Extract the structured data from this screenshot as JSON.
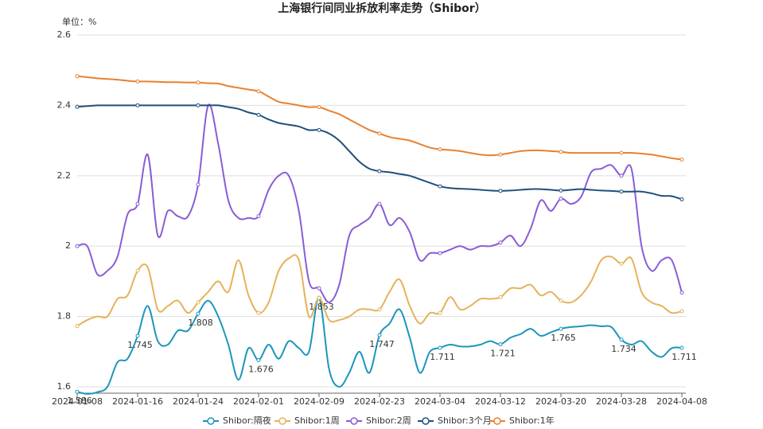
{
  "chart_data": {
    "type": "line",
    "title": "上海银行间同业拆放利率走势（Shibor）",
    "y_label": "单位：%",
    "categories": [
      "2024-01-08",
      null,
      null,
      null,
      null,
      null,
      "2024-01-16",
      null,
      null,
      null,
      null,
      null,
      "2024-01-24",
      null,
      null,
      null,
      null,
      null,
      "2024-02-01",
      null,
      null,
      null,
      null,
      null,
      "2024-02-09",
      null,
      null,
      null,
      null,
      null,
      "2024-02-23",
      null,
      null,
      null,
      null,
      null,
      "2024-03-04",
      null,
      null,
      null,
      null,
      null,
      "2024-03-12",
      null,
      null,
      null,
      null,
      null,
      "2024-03-20",
      null,
      null,
      null,
      null,
      null,
      "2024-03-28",
      null,
      null,
      null,
      null,
      null,
      "2024-04-08"
    ],
    "ylim": [
      1.582,
      2.6
    ],
    "yticks": [
      1.6,
      1.8,
      2,
      2.2,
      2.4,
      2.6
    ],
    "grid": true,
    "smooth": true,
    "legend": "bottom",
    "series": [
      {
        "name": "Shibor:隔夜",
        "color": "#1b96bd",
        "values": [
          1.586,
          1.58,
          1.585,
          1.6,
          1.67,
          1.68,
          1.745,
          1.83,
          1.73,
          1.72,
          1.76,
          1.76,
          1.808,
          1.845,
          1.8,
          1.72,
          1.62,
          1.71,
          1.676,
          1.72,
          1.68,
          1.73,
          1.71,
          1.7,
          1.853,
          1.65,
          1.6,
          1.64,
          1.7,
          1.64,
          1.747,
          1.78,
          1.82,
          1.74,
          1.64,
          1.7,
          1.711,
          1.72,
          1.715,
          1.715,
          1.72,
          1.73,
          1.721,
          1.74,
          1.75,
          1.765,
          1.745,
          1.755,
          1.765,
          1.77,
          1.772,
          1.775,
          1.772,
          1.77,
          1.734,
          1.72,
          1.73,
          1.7,
          1.685,
          1.71,
          1.711
        ],
        "value_labels": [
          "1.586",
          null,
          null,
          null,
          null,
          null,
          "1.745",
          null,
          null,
          null,
          null,
          null,
          "1.808",
          null,
          null,
          null,
          null,
          null,
          "1.676",
          null,
          null,
          null,
          null,
          null,
          "1.853",
          null,
          null,
          null,
          null,
          null,
          "1.747",
          null,
          null,
          null,
          null,
          null,
          "1.711",
          null,
          null,
          null,
          null,
          null,
          "1.721",
          null,
          null,
          null,
          null,
          null,
          "1.765",
          null,
          null,
          null,
          null,
          null,
          "1.734",
          null,
          null,
          null,
          null,
          null,
          "1.711"
        ]
      },
      {
        "name": "Shibor:1周",
        "color": "#e6b25a",
        "values": [
          1.773,
          1.79,
          1.8,
          1.8,
          1.85,
          1.86,
          1.93,
          1.94,
          1.82,
          1.83,
          1.845,
          1.81,
          1.84,
          1.87,
          1.9,
          1.87,
          1.96,
          1.86,
          1.81,
          1.84,
          1.93,
          1.965,
          1.96,
          1.8,
          1.853,
          1.79,
          1.79,
          1.8,
          1.82,
          1.82,
          1.82,
          1.87,
          1.905,
          1.83,
          1.78,
          1.81,
          1.81,
          1.855,
          1.82,
          1.83,
          1.85,
          1.85,
          1.855,
          1.88,
          1.88,
          1.89,
          1.86,
          1.87,
          1.845,
          1.84,
          1.86,
          1.9,
          1.96,
          1.97,
          1.95,
          1.965,
          1.87,
          1.84,
          1.83,
          1.81,
          1.815
        ]
      },
      {
        "name": "Shibor:2周",
        "color": "#8a5cd6",
        "values": [
          2.0,
          2.0,
          1.92,
          1.93,
          1.97,
          2.09,
          2.12,
          2.26,
          2.03,
          2.1,
          2.085,
          2.085,
          2.175,
          2.4,
          2.29,
          2.13,
          2.08,
          2.08,
          2.085,
          2.16,
          2.2,
          2.2,
          2.1,
          1.9,
          1.88,
          1.84,
          1.89,
          2.03,
          2.06,
          2.08,
          2.12,
          2.06,
          2.08,
          2.04,
          1.96,
          1.98,
          1.98,
          1.99,
          2.0,
          1.99,
          2.0,
          2.0,
          2.01,
          2.03,
          2.0,
          2.05,
          2.13,
          2.1,
          2.135,
          2.12,
          2.14,
          2.21,
          2.22,
          2.23,
          2.2,
          2.22,
          2.0,
          1.93,
          1.96,
          1.96,
          1.868
        ]
      },
      {
        "name": "Shibor:3个月",
        "color": "#1f4f7a",
        "values": [
          2.396,
          2.398,
          2.4,
          2.4,
          2.4,
          2.4,
          2.4,
          2.4,
          2.4,
          2.4,
          2.4,
          2.4,
          2.4,
          2.4,
          2.4,
          2.395,
          2.39,
          2.38,
          2.373,
          2.36,
          2.35,
          2.345,
          2.34,
          2.33,
          2.33,
          2.32,
          2.3,
          2.27,
          2.24,
          2.22,
          2.213,
          2.21,
          2.205,
          2.2,
          2.19,
          2.18,
          2.17,
          2.165,
          2.163,
          2.162,
          2.16,
          2.158,
          2.157,
          2.158,
          2.16,
          2.162,
          2.162,
          2.16,
          2.158,
          2.16,
          2.162,
          2.16,
          2.158,
          2.157,
          2.155,
          2.155,
          2.155,
          2.15,
          2.143,
          2.142,
          2.133
        ]
      },
      {
        "name": "Shibor:1年",
        "color": "#e8812f",
        "values": [
          2.483,
          2.48,
          2.477,
          2.475,
          2.473,
          2.47,
          2.468,
          2.468,
          2.467,
          2.466,
          2.466,
          2.465,
          2.465,
          2.463,
          2.462,
          2.455,
          2.45,
          2.445,
          2.44,
          2.425,
          2.41,
          2.405,
          2.4,
          2.395,
          2.395,
          2.385,
          2.375,
          2.36,
          2.345,
          2.33,
          2.32,
          2.31,
          2.305,
          2.3,
          2.29,
          2.28,
          2.275,
          2.273,
          2.27,
          2.265,
          2.26,
          2.258,
          2.26,
          2.265,
          2.27,
          2.272,
          2.272,
          2.27,
          2.268,
          2.265,
          2.265,
          2.265,
          2.265,
          2.265,
          2.265,
          2.265,
          2.263,
          2.26,
          2.255,
          2.25,
          2.246
        ]
      }
    ]
  }
}
